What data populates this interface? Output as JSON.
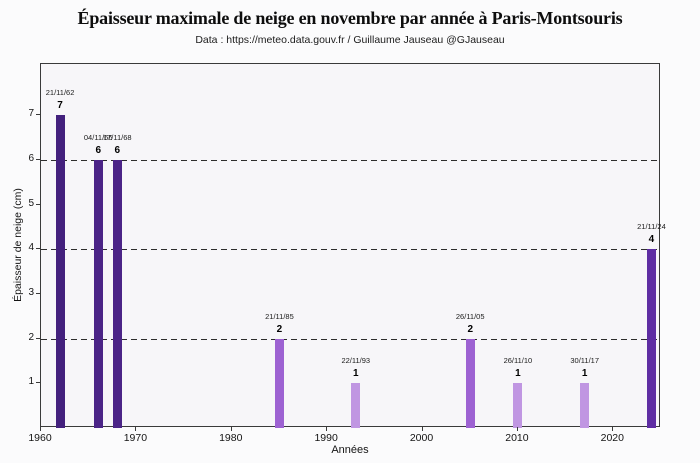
{
  "chart_data": {
    "type": "bar",
    "title": "Épaisseur maximale de neige en novembre par année à Paris-Montsouris",
    "subtitle": "Data : https://meteo.data.gouv.fr / Guillaume Jauseau @GJauseau",
    "xlabel": "Années",
    "ylabel": "Épaisseur de neige (cm)",
    "xlim": [
      1960,
      2025
    ],
    "ylim": [
      0,
      8.15
    ],
    "x_ticks": [
      1960,
      1970,
      1980,
      1990,
      2000,
      2010,
      2020
    ],
    "y_ticks": [
      1,
      2,
      3,
      4,
      5,
      6,
      7
    ],
    "gridlines_y": [
      2,
      4,
      6
    ],
    "grid_style": "dashed",
    "legend": "none",
    "points": [
      {
        "year": 1962,
        "date": "21/11/62",
        "value": 7,
        "color": "#43207d"
      },
      {
        "year": 1966,
        "date": "04/11/66",
        "value": 6,
        "color": "#4b2487"
      },
      {
        "year": 1968,
        "date": "17/11/68",
        "value": 6,
        "color": "#4b2487"
      },
      {
        "year": 1985,
        "date": "21/11/85",
        "value": 2,
        "color": "#9d62d2"
      },
      {
        "year": 1993,
        "date": "22/11/93",
        "value": 1,
        "color": "#c096e2"
      },
      {
        "year": 2005,
        "date": "26/11/05",
        "value": 2,
        "color": "#9d62d2"
      },
      {
        "year": 2010,
        "date": "26/11/10",
        "value": 1,
        "color": "#c096e2"
      },
      {
        "year": 2017,
        "date": "30/11/17",
        "value": 1,
        "color": "#c096e2"
      },
      {
        "year": 2024,
        "date": "21/11/24",
        "value": 4,
        "color": "#5e2da3"
      }
    ]
  }
}
